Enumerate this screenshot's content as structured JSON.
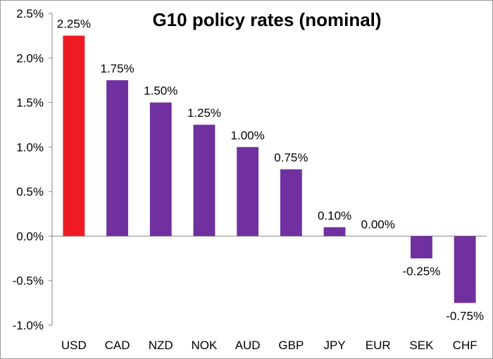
{
  "chart_data": {
    "type": "bar",
    "title": "G10 policy rates (nominal)",
    "xlabel": "",
    "ylabel": "",
    "ylim": [
      -1.0,
      2.5
    ],
    "yticks": [
      2.5,
      2.0,
      1.5,
      1.0,
      0.5,
      0.0,
      -0.5,
      -1.0
    ],
    "ytick_labels": [
      "2.5%",
      "2.0%",
      "1.5%",
      "1.0%",
      "0.5%",
      "0.0%",
      "-0.5%",
      "-1.0%"
    ],
    "categories": [
      "USD",
      "CAD",
      "NZD",
      "NOK",
      "AUD",
      "GBP",
      "JPY",
      "EUR",
      "SEK",
      "CHF"
    ],
    "values": [
      2.25,
      1.75,
      1.5,
      1.25,
      1.0,
      0.75,
      0.1,
      0.0,
      -0.25,
      -0.75
    ],
    "data_labels": [
      "2.25%",
      "1.75%",
      "1.50%",
      "1.25%",
      "1.00%",
      "0.75%",
      "0.10%",
      "0.00%",
      "-0.25%",
      "-0.75%"
    ],
    "colors": [
      "#ed1c24",
      "#7030a0",
      "#7030a0",
      "#7030a0",
      "#7030a0",
      "#7030a0",
      "#7030a0",
      "#7030a0",
      "#7030a0",
      "#7030a0"
    ],
    "grid": false,
    "legend": "none"
  }
}
